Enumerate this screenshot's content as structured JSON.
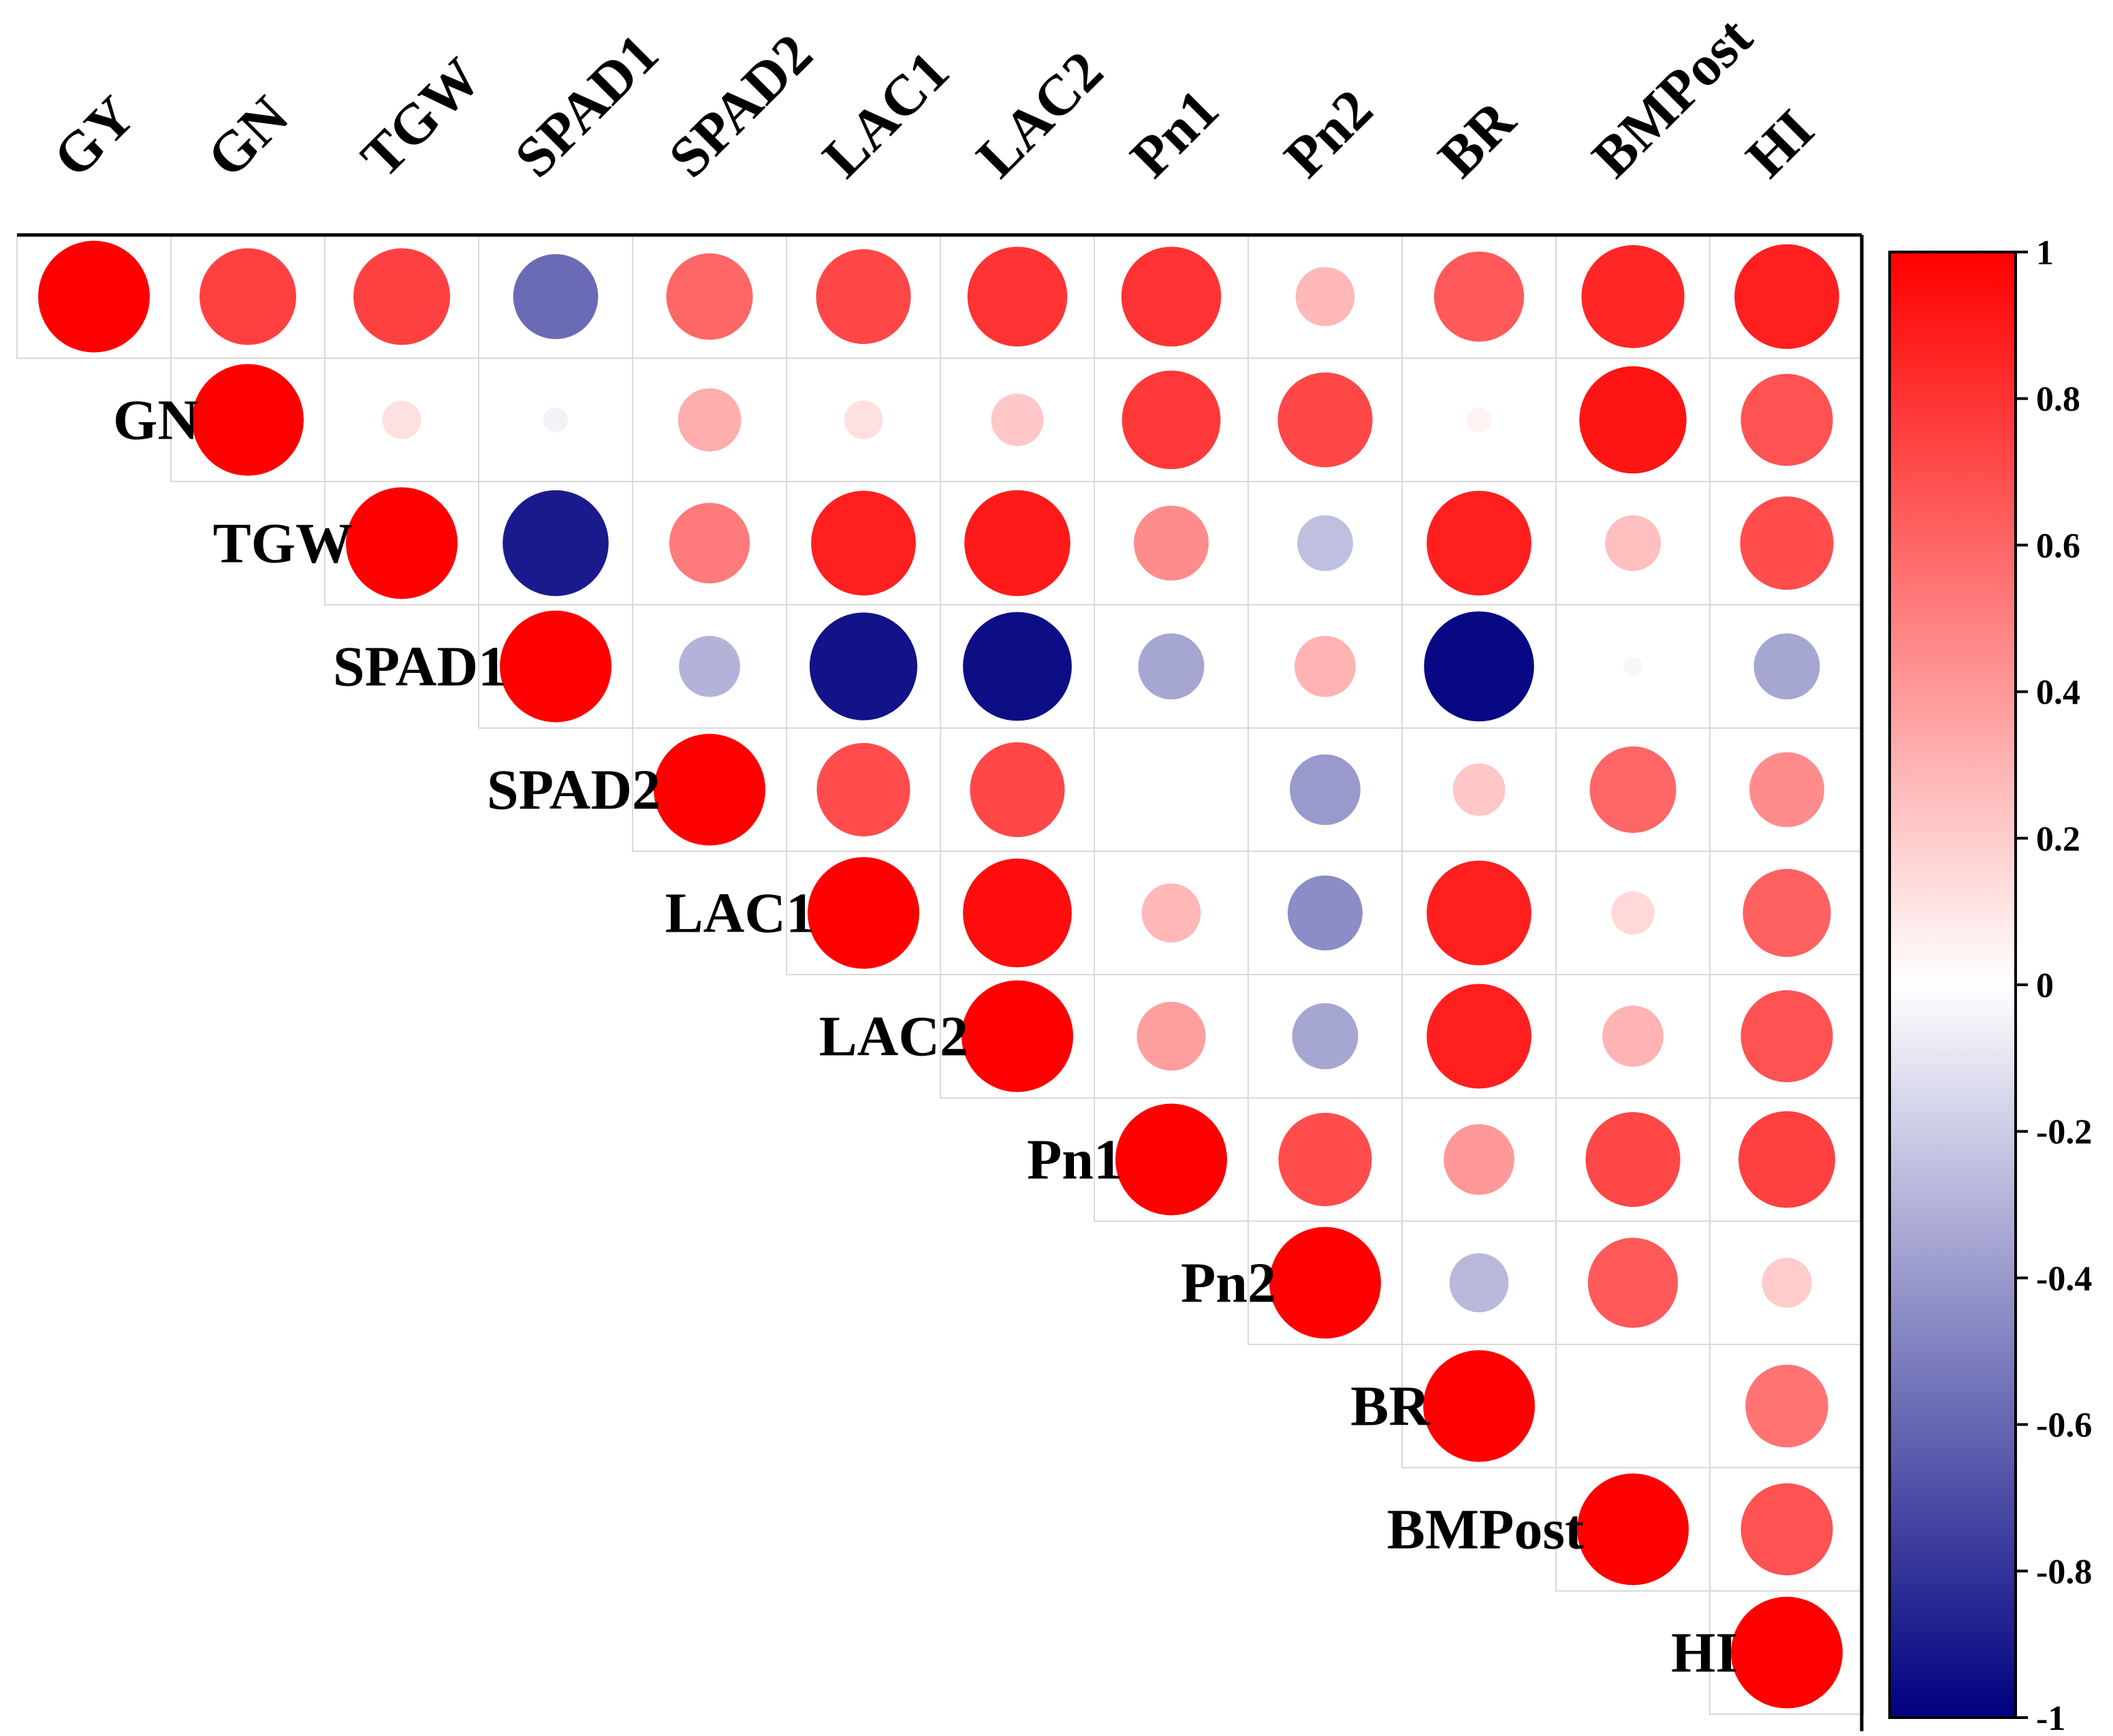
{
  "chart_data": {
    "type": "heatmap",
    "subtype": "correlation-upper-triangle-circles",
    "variables": [
      "GY",
      "GN",
      "TGW",
      "SPAD1",
      "SPAD2",
      "LAC1",
      "LAC2",
      "Pn1",
      "Pn2",
      "BR",
      "BMPost",
      "HI"
    ],
    "matrix": [
      [
        1.0,
        0.75,
        0.75,
        -0.58,
        0.6,
        0.72,
        0.8,
        0.8,
        0.28,
        0.65,
        0.85,
        0.88
      ],
      [
        null,
        1.0,
        0.12,
        -0.05,
        0.32,
        0.12,
        0.22,
        0.78,
        0.72,
        0.05,
        0.92,
        0.68
      ],
      [
        null,
        null,
        1.0,
        -0.9,
        0.52,
        0.88,
        0.9,
        0.45,
        -0.25,
        0.88,
        0.25,
        0.7
      ],
      [
        null,
        null,
        null,
        1.0,
        -0.3,
        -0.93,
        -0.95,
        -0.35,
        0.3,
        -0.97,
        -0.03,
        -0.35
      ],
      [
        null,
        null,
        null,
        null,
        1.0,
        0.7,
        0.72,
        0.0,
        -0.4,
        0.22,
        0.6,
        0.45
      ],
      [
        null,
        null,
        null,
        null,
        null,
        1.0,
        0.95,
        0.28,
        -0.45,
        0.88,
        0.15,
        0.62
      ],
      [
        null,
        null,
        null,
        null,
        null,
        null,
        1.0,
        0.38,
        -0.35,
        0.88,
        0.3,
        0.68
      ],
      [
        null,
        null,
        null,
        null,
        null,
        null,
        null,
        1.0,
        0.7,
        0.4,
        0.72,
        0.75
      ],
      [
        null,
        null,
        null,
        null,
        null,
        null,
        null,
        null,
        1.0,
        -0.28,
        0.65,
        0.2
      ],
      [
        null,
        null,
        null,
        null,
        null,
        null,
        null,
        null,
        null,
        1.0,
        0.0,
        0.55
      ],
      [
        null,
        null,
        null,
        null,
        null,
        null,
        null,
        null,
        null,
        null,
        1.0,
        0.68
      ],
      [
        null,
        null,
        null,
        null,
        null,
        null,
        null,
        null,
        null,
        null,
        null,
        1.0
      ]
    ],
    "row_labels": [
      "GN",
      "TGW",
      "SPAD1",
      "SPAD2",
      "LAC1",
      "LAC2",
      "Pn1",
      "Pn2",
      "BR",
      "BMPost",
      "HI"
    ],
    "colorbar": {
      "range": [
        -1,
        1
      ],
      "ticks": [
        "1",
        "0.8",
        "0.6",
        "0.4",
        "0.2",
        "0",
        "-0.2",
        "-0.4",
        "-0.6",
        "-0.8",
        "-1"
      ],
      "colors": {
        "negative": "#000080",
        "zero": "#ffffff",
        "positive": "#ff0000"
      }
    },
    "title": "",
    "xlabel": "",
    "ylabel": ""
  }
}
